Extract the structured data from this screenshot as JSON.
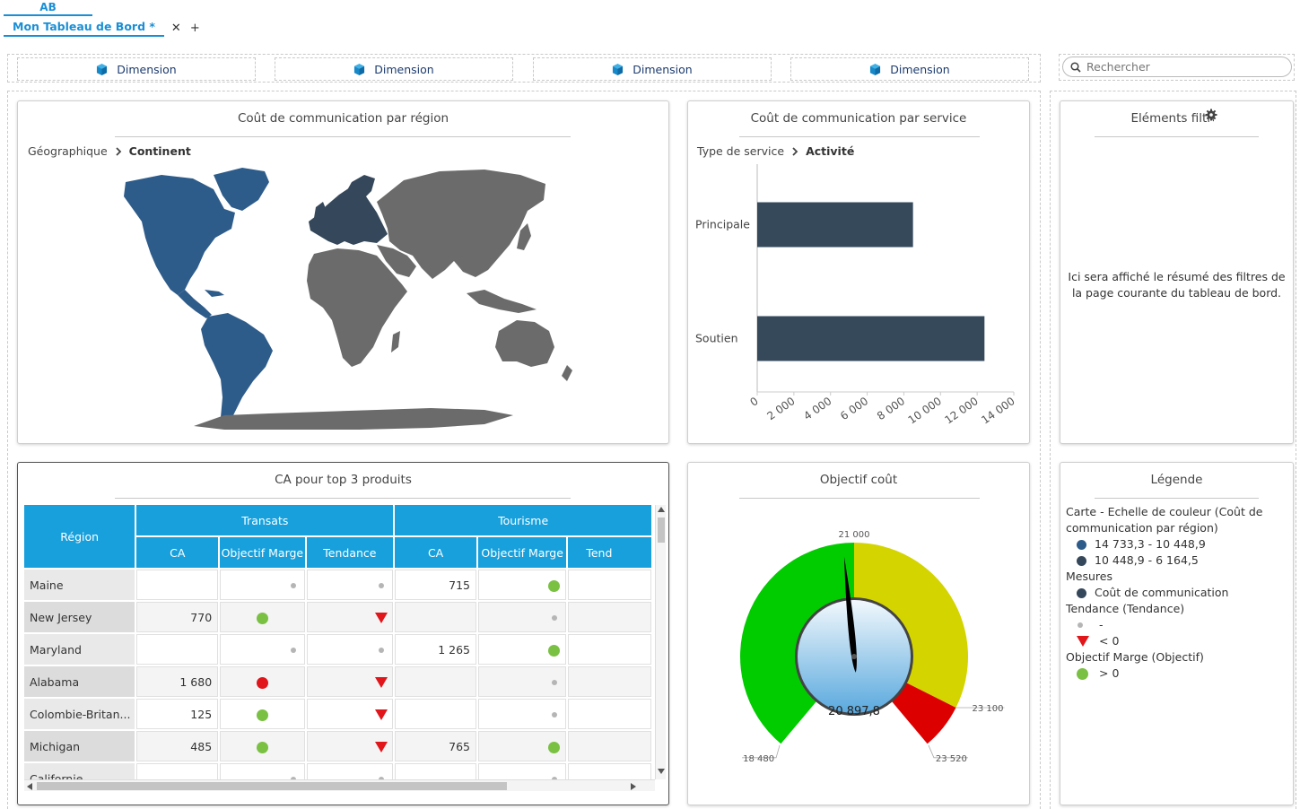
{
  "tabs": {
    "workspace": "AB",
    "document": "Mon Tableau de Bord *",
    "close": "✕",
    "add": "+"
  },
  "dimension_slots": [
    "Dimension",
    "Dimension",
    "Dimension",
    "Dimension"
  ],
  "search": {
    "placeholder": "Rechercher"
  },
  "map_panel": {
    "title": "Coût de communication par région",
    "breadcrumb_root": "Géographique",
    "breadcrumb_current": "Continent",
    "colors": {
      "high": "#2e5c8a",
      "mid": "#35475a",
      "none": "#6b6b6b"
    }
  },
  "bar_panel": {
    "title": "Coût de communication par service",
    "breadcrumb_root": "Type de service",
    "breadcrumb_current": "Activité"
  },
  "chart_data": {
    "type": "bar",
    "orientation": "horizontal",
    "title": "Coût de communication par service",
    "categories": [
      "Principale",
      "Soutien"
    ],
    "values": [
      8500,
      12400
    ],
    "xlim": [
      0,
      14000
    ],
    "tick_labels": [
      "0",
      "2 000",
      "4 000",
      "6 000",
      "8 000",
      "10 000",
      "12 000",
      "14 000"
    ],
    "bar_color": "#35495b"
  },
  "filters_panel": {
    "title": "Eléments filtrés",
    "message": "Ici sera affiché le résumé des filtres de la page courante du tableau de bord."
  },
  "table_panel": {
    "title": "CA pour top 3 produits",
    "col_region": "Région",
    "groups": [
      "Transats",
      "Tourisme"
    ],
    "subcols": [
      "CA",
      "Objectif Marge",
      "Tendance",
      "CA",
      "Objectif Marge",
      "Tend"
    ],
    "rows": [
      {
        "region": "Maine",
        "ca1": "",
        "obj1": "small",
        "tend1": "small",
        "ca2": "715",
        "obj2": "green"
      },
      {
        "region": "New Jersey",
        "ca1": "770",
        "obj1": "green",
        "tend1": "down",
        "ca2": "",
        "obj2": "small"
      },
      {
        "region": "Maryland",
        "ca1": "",
        "obj1": "small",
        "tend1": "small",
        "ca2": "1 265",
        "obj2": "green"
      },
      {
        "region": "Alabama",
        "ca1": "1 680",
        "obj1": "red",
        "tend1": "down",
        "ca2": "",
        "obj2": "small"
      },
      {
        "region": "Colombie-Britan...",
        "ca1": "125",
        "obj1": "green",
        "tend1": "down",
        "ca2": "",
        "obj2": "small"
      },
      {
        "region": "Michigan",
        "ca1": "485",
        "obj1": "green",
        "tend1": "down",
        "ca2": "765",
        "obj2": "green"
      },
      {
        "region": "Californie",
        "ca1": "",
        "obj1": "small",
        "tend1": "small",
        "ca2": "",
        "obj2": "small"
      }
    ]
  },
  "gauge_panel": {
    "title": "Objectif coût",
    "value": 20897.8,
    "value_label": "20 897,8",
    "min": 18480,
    "max": 23520,
    "labels": {
      "min": "18 480",
      "top": "21 000",
      "mid": "23 100",
      "max": "23 520"
    },
    "bands": [
      {
        "from": 18480,
        "to": 21000,
        "color": "#00cc00"
      },
      {
        "from": 21000,
        "to": 23100,
        "color": "#d4d400"
      },
      {
        "from": 23100,
        "to": 23520,
        "color": "#dd0000"
      }
    ]
  },
  "legend_panel": {
    "title": "Légende",
    "section_map": "Carte - Echelle de couleur (Coût de communication par région)",
    "range1": "14 733,3 - 10 448,9",
    "range1_color": "#2e5c8a",
    "range2": "10 448,9 - 6 164,5",
    "range2_color": "#35475a",
    "section_measures": "Mesures",
    "measure1": "Coût de communication",
    "measure1_color": "#35475a",
    "section_trend": "Tendance (Tendance)",
    "trend_neutral": "-",
    "trend_down": "< 0",
    "section_objective": "Objectif Marge (Objectif)",
    "objective_pos": "> 0",
    "objective_color": "#7ac143"
  }
}
